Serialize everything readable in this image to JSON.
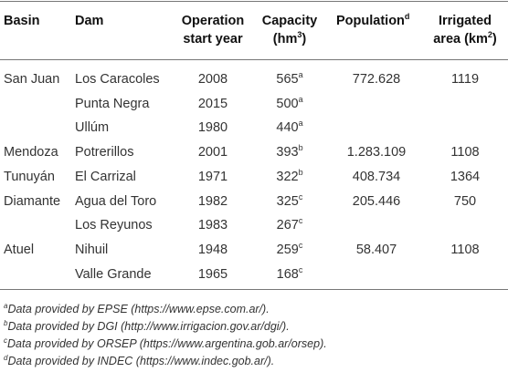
{
  "table": {
    "headers": {
      "basin": "Basin",
      "dam": "Dam",
      "operation_l1": "Operation",
      "operation_l2": "start year",
      "capacity_l1": "Capacity",
      "capacity_l2": "(hm",
      "capacity_sup": "3",
      "capacity_end": ")",
      "population": "Population",
      "population_sup": "d",
      "irrigated_l1": "Irrigated",
      "irrigated_l2": "area (km",
      "irrigated_sup": "2",
      "irrigated_end": ")"
    },
    "rows": [
      {
        "basin": "San Juan",
        "dam": "Los Caracoles",
        "year": "2008",
        "capacity": "565",
        "cap_note": "a",
        "population": "772.628",
        "area": "1119"
      },
      {
        "basin": "",
        "dam": "Punta Negra",
        "year": "2015",
        "capacity": "500",
        "cap_note": "a",
        "population": "",
        "area": ""
      },
      {
        "basin": "",
        "dam": "Ullúm",
        "year": "1980",
        "capacity": "440",
        "cap_note": "a",
        "population": "",
        "area": ""
      },
      {
        "basin": "Mendoza",
        "dam": "Potrerillos",
        "year": "2001",
        "capacity": "393",
        "cap_note": "b",
        "population": "1.283.109",
        "area": "1108"
      },
      {
        "basin": "Tunuyán",
        "dam": "El Carrizal",
        "year": "1971",
        "capacity": "322",
        "cap_note": "b",
        "population": "408.734",
        "area": "1364"
      },
      {
        "basin": "Diamante",
        "dam": "Agua del Toro",
        "year": "1982",
        "capacity": "325",
        "cap_note": "c",
        "population": "205.446",
        "area": "750"
      },
      {
        "basin": "",
        "dam": "Los Reyunos",
        "year": "1983",
        "capacity": "267",
        "cap_note": "c",
        "population": "",
        "area": ""
      },
      {
        "basin": "Atuel",
        "dam": "Nihuil",
        "year": "1948",
        "capacity": "259",
        "cap_note": "c",
        "population": "58.407",
        "area": "1108"
      },
      {
        "basin": "",
        "dam": "Valle Grande",
        "year": "1965",
        "capacity": "168",
        "cap_note": "c",
        "population": "",
        "area": ""
      }
    ]
  },
  "footnotes": [
    {
      "mark": "a",
      "text": "Data provided by EPSE (https://www.epse.com.ar/)."
    },
    {
      "mark": "b",
      "text": "Data provided by DGI (http://www.irrigacion.gov.ar/dgi/)."
    },
    {
      "mark": "c",
      "text": "Data provided by ORSEP (https://www.argentina.gob.ar/orsep)."
    },
    {
      "mark": "d",
      "text": "Data provided by INDEC (https://www.indec.gob.ar/)."
    }
  ]
}
